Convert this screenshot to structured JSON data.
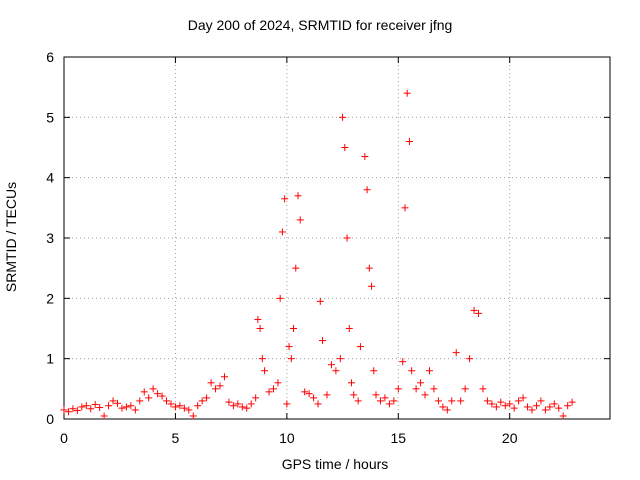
{
  "chart_data": {
    "type": "scatter",
    "title": "Day 200 of 2024, SRMTID for receiver jfng",
    "xlabel": "GPS time / hours",
    "ylabel": "SRMTID / TECUs",
    "xlim": [
      0,
      24.5
    ],
    "ylim": [
      0,
      6
    ],
    "xticks": [
      0,
      5,
      10,
      15,
      20
    ],
    "yticks": [
      0,
      1,
      2,
      3,
      4,
      5,
      6
    ],
    "grid": true,
    "marker": "+",
    "color": "#ff0000",
    "series": [
      {
        "name": "SRMTID",
        "points": [
          [
            0.0,
            0.15
          ],
          [
            0.2,
            0.12
          ],
          [
            0.4,
            0.17
          ],
          [
            0.6,
            0.14
          ],
          [
            0.8,
            0.2
          ],
          [
            1.0,
            0.22
          ],
          [
            1.2,
            0.17
          ],
          [
            1.4,
            0.24
          ],
          [
            1.6,
            0.19
          ],
          [
            1.8,
            0.05
          ],
          [
            2.0,
            0.22
          ],
          [
            2.2,
            0.3
          ],
          [
            2.4,
            0.26
          ],
          [
            2.6,
            0.18
          ],
          [
            2.8,
            0.2
          ],
          [
            3.0,
            0.22
          ],
          [
            3.2,
            0.15
          ],
          [
            3.4,
            0.3
          ],
          [
            3.6,
            0.45
          ],
          [
            3.8,
            0.35
          ],
          [
            4.0,
            0.5
          ],
          [
            4.2,
            0.42
          ],
          [
            4.4,
            0.38
          ],
          [
            4.6,
            0.3
          ],
          [
            4.8,
            0.25
          ],
          [
            5.0,
            0.2
          ],
          [
            5.2,
            0.22
          ],
          [
            5.4,
            0.18
          ],
          [
            5.6,
            0.15
          ],
          [
            5.8,
            0.05
          ],
          [
            6.0,
            0.22
          ],
          [
            6.2,
            0.3
          ],
          [
            6.4,
            0.35
          ],
          [
            6.6,
            0.6
          ],
          [
            6.8,
            0.5
          ],
          [
            7.0,
            0.55
          ],
          [
            7.2,
            0.7
          ],
          [
            7.4,
            0.28
          ],
          [
            7.6,
            0.22
          ],
          [
            7.8,
            0.25
          ],
          [
            8.0,
            0.2
          ],
          [
            8.2,
            0.18
          ],
          [
            8.4,
            0.25
          ],
          [
            8.6,
            0.35
          ],
          [
            8.7,
            1.65
          ],
          [
            8.8,
            1.5
          ],
          [
            8.9,
            1.0
          ],
          [
            9.0,
            0.8
          ],
          [
            9.2,
            0.45
          ],
          [
            9.4,
            0.5
          ],
          [
            9.6,
            0.6
          ],
          [
            9.7,
            2.0
          ],
          [
            9.8,
            3.1
          ],
          [
            9.9,
            3.65
          ],
          [
            10.0,
            0.25
          ],
          [
            10.1,
            1.2
          ],
          [
            10.2,
            1.0
          ],
          [
            10.3,
            1.5
          ],
          [
            10.4,
            2.5
          ],
          [
            10.5,
            3.7
          ],
          [
            10.6,
            3.3
          ],
          [
            10.8,
            0.45
          ],
          [
            11.0,
            0.42
          ],
          [
            11.2,
            0.35
          ],
          [
            11.4,
            0.25
          ],
          [
            11.5,
            1.95
          ],
          [
            11.6,
            1.3
          ],
          [
            11.8,
            0.4
          ],
          [
            12.0,
            0.9
          ],
          [
            12.2,
            0.8
          ],
          [
            12.4,
            1.0
          ],
          [
            12.5,
            5.0
          ],
          [
            12.6,
            4.5
          ],
          [
            12.7,
            3.0
          ],
          [
            12.8,
            1.5
          ],
          [
            12.9,
            0.6
          ],
          [
            13.0,
            0.4
          ],
          [
            13.2,
            0.3
          ],
          [
            13.3,
            1.2
          ],
          [
            13.5,
            4.35
          ],
          [
            13.6,
            3.8
          ],
          [
            13.7,
            2.5
          ],
          [
            13.8,
            2.2
          ],
          [
            13.9,
            0.8
          ],
          [
            14.0,
            0.4
          ],
          [
            14.2,
            0.3
          ],
          [
            14.4,
            0.35
          ],
          [
            14.6,
            0.25
          ],
          [
            14.8,
            0.3
          ],
          [
            15.0,
            0.5
          ],
          [
            15.2,
            0.95
          ],
          [
            15.3,
            3.5
          ],
          [
            15.4,
            5.4
          ],
          [
            15.5,
            4.6
          ],
          [
            15.6,
            0.8
          ],
          [
            15.8,
            0.5
          ],
          [
            16.0,
            0.6
          ],
          [
            16.2,
            0.4
          ],
          [
            16.4,
            0.8
          ],
          [
            16.6,
            0.5
          ],
          [
            16.8,
            0.3
          ],
          [
            17.0,
            0.2
          ],
          [
            17.2,
            0.15
          ],
          [
            17.4,
            0.3
          ],
          [
            17.6,
            1.1
          ],
          [
            17.8,
            0.3
          ],
          [
            18.0,
            0.5
          ],
          [
            18.2,
            1.0
          ],
          [
            18.4,
            1.8
          ],
          [
            18.6,
            1.75
          ],
          [
            18.8,
            0.5
          ],
          [
            19.0,
            0.3
          ],
          [
            19.2,
            0.25
          ],
          [
            19.4,
            0.2
          ],
          [
            19.6,
            0.28
          ],
          [
            19.8,
            0.22
          ],
          [
            20.0,
            0.25
          ],
          [
            20.2,
            0.18
          ],
          [
            20.4,
            0.3
          ],
          [
            20.6,
            0.35
          ],
          [
            20.8,
            0.2
          ],
          [
            21.0,
            0.15
          ],
          [
            21.2,
            0.22
          ],
          [
            21.4,
            0.3
          ],
          [
            21.6,
            0.15
          ],
          [
            21.8,
            0.2
          ],
          [
            22.0,
            0.25
          ],
          [
            22.2,
            0.18
          ],
          [
            22.4,
            0.05
          ],
          [
            22.6,
            0.22
          ],
          [
            22.8,
            0.28
          ]
        ]
      }
    ]
  }
}
